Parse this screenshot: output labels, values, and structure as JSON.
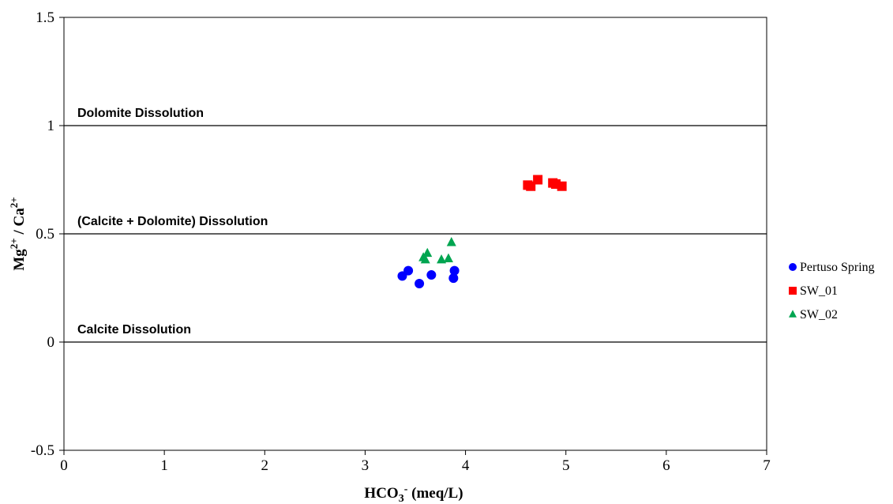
{
  "chart_data": {
    "type": "scatter",
    "xlabel_main": "HCO",
    "xlabel_sub": "3",
    "xlabel_sup": "-",
    "xlabel_rest": " (meq/L)",
    "ylabel_a": "Mg",
    "ylabel_a_sup": "2+",
    "ylabel_mid": " / Ca",
    "ylabel_b_sup": "2+",
    "xlim": [
      0,
      7
    ],
    "ylim": [
      -0.5,
      1.5
    ],
    "x_ticks": [
      "0",
      "1",
      "2",
      "3",
      "4",
      "5",
      "6",
      "7"
    ],
    "y_ticks": [
      "-0.5",
      "0",
      "0.5",
      "1",
      "1.5"
    ],
    "x_tick_values": [
      0,
      1,
      2,
      3,
      4,
      5,
      6,
      7
    ],
    "y_tick_values": [
      -0.5,
      0,
      0.5,
      1,
      1.5
    ],
    "reference_lines": [
      0,
      0.5,
      1
    ],
    "regions": [
      {
        "label": "Dolomite Dissolution",
        "y": 1
      },
      {
        "label": "(Calcite + Dolomite) Dissolution",
        "y": 0.5
      },
      {
        "label": "Calcite Dissolution",
        "y": 0
      }
    ],
    "legend_position": "right",
    "series": [
      {
        "name": "Pertuso Spring",
        "marker": "circle",
        "color": "#0000ff",
        "points": [
          {
            "x": 3.37,
            "y": 0.305
          },
          {
            "x": 3.43,
            "y": 0.33
          },
          {
            "x": 3.54,
            "y": 0.27
          },
          {
            "x": 3.66,
            "y": 0.31
          },
          {
            "x": 3.88,
            "y": 0.295
          },
          {
            "x": 3.89,
            "y": 0.33
          }
        ]
      },
      {
        "name": "SW_01",
        "marker": "square",
        "color": "#ff0000",
        "points": [
          {
            "x": 4.62,
            "y": 0.725
          },
          {
            "x": 4.65,
            "y": 0.72
          },
          {
            "x": 4.72,
            "y": 0.75
          },
          {
            "x": 4.87,
            "y": 0.735
          },
          {
            "x": 4.9,
            "y": 0.73
          },
          {
            "x": 4.96,
            "y": 0.72
          }
        ]
      },
      {
        "name": "SW_02",
        "marker": "triangle",
        "color": "#00a550",
        "points": [
          {
            "x": 3.58,
            "y": 0.39
          },
          {
            "x": 3.6,
            "y": 0.38
          },
          {
            "x": 3.62,
            "y": 0.41
          },
          {
            "x": 3.76,
            "y": 0.38
          },
          {
            "x": 3.83,
            "y": 0.385
          },
          {
            "x": 3.86,
            "y": 0.46
          }
        ]
      }
    ]
  }
}
